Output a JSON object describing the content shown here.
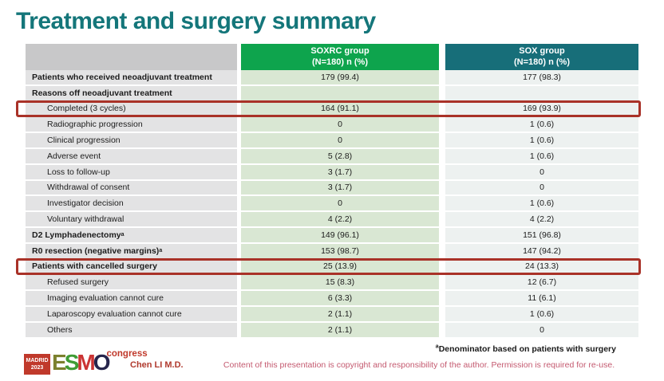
{
  "slide": {
    "title": "Treatment and surgery summary",
    "footnote_sup": "a",
    "footnote_text": "Denominator based on patients with surgery",
    "copyright": "Content of this presentation is copyright and responsibility of the author.  Permission is required for re-use.",
    "author": "Chen LI M.D.",
    "logo": {
      "madrid": "MADRID",
      "year": "2023",
      "esmo": {
        "e": "E",
        "s": "S",
        "m": "M",
        "o": "O"
      },
      "congress": "congress"
    }
  },
  "colors": {
    "title_teal": "#14767a",
    "soxrc_header_green": "#0ea44d",
    "sox_header_teal": "#176e79",
    "label_cell_gray": "#e3e3e4",
    "soxrc_cell_green": "#d9e7d3",
    "sox_cell_gray": "#edf1f0",
    "highlight_red": "#a93228",
    "copyright_rose": "#c4596f"
  },
  "table": {
    "columns": [
      {
        "label": "SOXRC group",
        "sub": "(N=180)  n (%)"
      },
      {
        "label": "SOX group",
        "sub": "(N=180)  n (%)"
      }
    ],
    "rows": [
      {
        "label": "Patients who received neoadjuvant treatment",
        "bold": true,
        "indent": false,
        "soxrc": "179 (99.4)",
        "sox": "177 (98.3)"
      },
      {
        "label": "Reasons off neoadjuvant treatment",
        "bold": true,
        "indent": false,
        "soxrc": "",
        "sox": ""
      },
      {
        "label": "Completed (3 cycles)",
        "bold": false,
        "indent": true,
        "highlight": true,
        "soxrc": "164 (91.1)",
        "sox": "169 (93.9)"
      },
      {
        "label": "Radiographic progression",
        "bold": false,
        "indent": true,
        "soxrc": "0",
        "sox": "1 (0.6)"
      },
      {
        "label": "Clinical progression",
        "bold": false,
        "indent": true,
        "soxrc": "0",
        "sox": "1 (0.6)"
      },
      {
        "label": "Adverse event",
        "bold": false,
        "indent": true,
        "soxrc": "5 (2.8)",
        "sox": "1 (0.6)"
      },
      {
        "label": "Loss to follow-up",
        "bold": false,
        "indent": true,
        "soxrc": "3 (1.7)",
        "sox": "0"
      },
      {
        "label": "Withdrawal of consent",
        "bold": false,
        "indent": true,
        "soxrc": "3 (1.7)",
        "sox": "0"
      },
      {
        "label": "Investigator decision",
        "bold": false,
        "indent": true,
        "soxrc": "0",
        "sox": "1 (0.6)"
      },
      {
        "label": "Voluntary withdrawal",
        "bold": false,
        "indent": true,
        "soxrc": "4 (2.2)",
        "sox": "4 (2.2)"
      },
      {
        "label": "D2 Lymphadenectomy",
        "sup": "a",
        "bold": true,
        "indent": false,
        "soxrc": "149 (96.1)",
        "sox": "151 (96.8)"
      },
      {
        "label": "R0 resection (negative margins)",
        "sup": "a",
        "bold": true,
        "indent": false,
        "soxrc": "153 (98.7)",
        "sox": "147 (94.2)"
      },
      {
        "label": "Patients with cancelled surgery",
        "bold": true,
        "indent": false,
        "highlight": true,
        "soxrc": "25 (13.9)",
        "sox": "24 (13.3)"
      },
      {
        "label": "Refused surgery",
        "bold": false,
        "indent": true,
        "soxrc": "15 (8.3)",
        "sox": "12 (6.7)"
      },
      {
        "label": "Imaging evaluation cannot cure",
        "bold": false,
        "indent": true,
        "soxrc": "6 (3.3)",
        "sox": "11 (6.1)"
      },
      {
        "label": "Laparoscopy evaluation cannot cure",
        "bold": false,
        "indent": true,
        "soxrc": "2 (1.1)",
        "sox": "1 (0.6)"
      },
      {
        "label": "Others",
        "bold": false,
        "indent": true,
        "soxrc": "2 (1.1)",
        "sox": "0"
      }
    ]
  }
}
